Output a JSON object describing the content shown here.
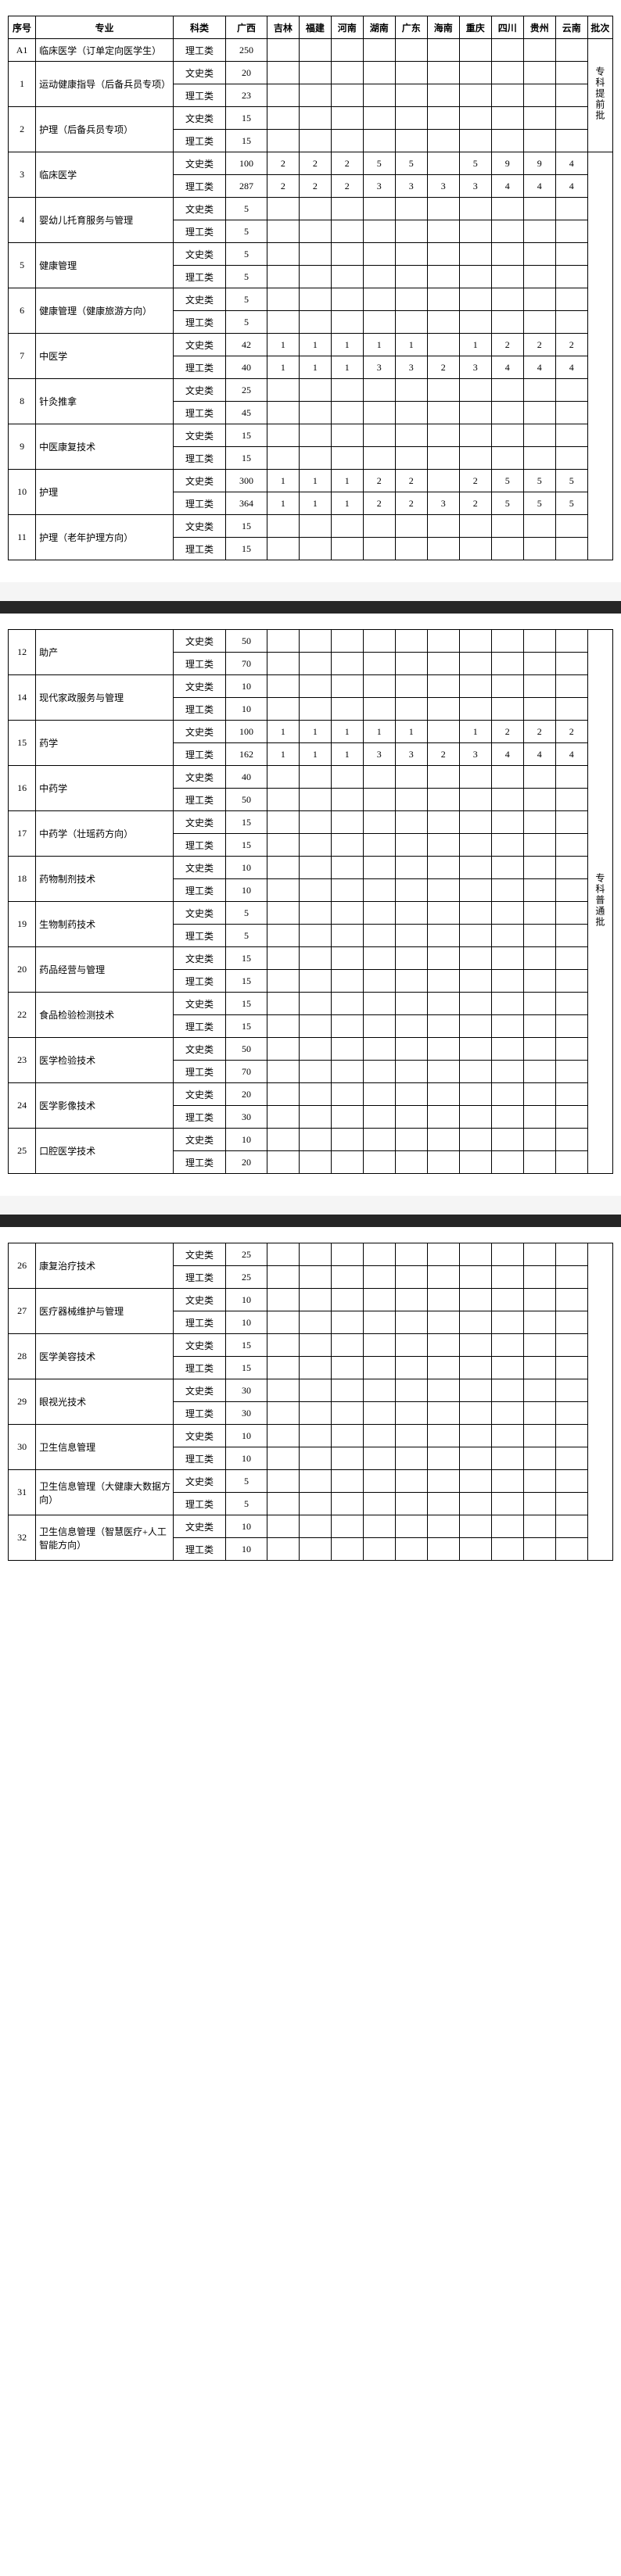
{
  "headers": {
    "seq": "序号",
    "major": "专业",
    "subject": "科类",
    "provinces": [
      "广西",
      "吉林",
      "福建",
      "河南",
      "湖南",
      "广东",
      "海南",
      "重庆",
      "四川",
      "贵州",
      "云南"
    ],
    "batch": "批次"
  },
  "batches": {
    "pre": "专科提前批",
    "normal": "专科普通批"
  },
  "subjects": {
    "arts": "文史类",
    "sci": "理工类"
  },
  "rows_p1": [
    {
      "seq": "A1",
      "major": "临床医学（订单定向医学生）",
      "subs": [
        {
          "s": "sci",
          "v": [
            "250",
            "",
            "",
            "",
            "",
            "",
            "",
            "",
            "",
            "",
            ""
          ]
        }
      ]
    },
    {
      "seq": "1",
      "major": "运动健康指导（后备兵员专项）",
      "subs": [
        {
          "s": "arts",
          "v": [
            "20",
            "",
            "",
            "",
            "",
            "",
            "",
            "",
            "",
            "",
            ""
          ]
        },
        {
          "s": "sci",
          "v": [
            "23",
            "",
            "",
            "",
            "",
            "",
            "",
            "",
            "",
            "",
            ""
          ]
        }
      ]
    },
    {
      "seq": "2",
      "major": "护理（后备兵员专项）",
      "subs": [
        {
          "s": "arts",
          "v": [
            "15",
            "",
            "",
            "",
            "",
            "",
            "",
            "",
            "",
            "",
            ""
          ]
        },
        {
          "s": "sci",
          "v": [
            "15",
            "",
            "",
            "",
            "",
            "",
            "",
            "",
            "",
            "",
            ""
          ]
        }
      ]
    },
    {
      "seq": "3",
      "major": "临床医学",
      "subs": [
        {
          "s": "arts",
          "v": [
            "100",
            "2",
            "2",
            "2",
            "5",
            "5",
            "",
            "5",
            "9",
            "9",
            "4"
          ]
        },
        {
          "s": "sci",
          "v": [
            "287",
            "2",
            "2",
            "2",
            "3",
            "3",
            "3",
            "3",
            "4",
            "4",
            "4"
          ]
        }
      ]
    },
    {
      "seq": "4",
      "major": "婴幼儿托育服务与管理",
      "subs": [
        {
          "s": "arts",
          "v": [
            "5",
            "",
            "",
            "",
            "",
            "",
            "",
            "",
            "",
            "",
            ""
          ]
        },
        {
          "s": "sci",
          "v": [
            "5",
            "",
            "",
            "",
            "",
            "",
            "",
            "",
            "",
            "",
            ""
          ]
        }
      ]
    },
    {
      "seq": "5",
      "major": "健康管理",
      "subs": [
        {
          "s": "arts",
          "v": [
            "5",
            "",
            "",
            "",
            "",
            "",
            "",
            "",
            "",
            "",
            ""
          ]
        },
        {
          "s": "sci",
          "v": [
            "5",
            "",
            "",
            "",
            "",
            "",
            "",
            "",
            "",
            "",
            ""
          ]
        }
      ]
    },
    {
      "seq": "6",
      "major": "健康管理（健康旅游方向）",
      "subs": [
        {
          "s": "arts",
          "v": [
            "5",
            "",
            "",
            "",
            "",
            "",
            "",
            "",
            "",
            "",
            ""
          ]
        },
        {
          "s": "sci",
          "v": [
            "5",
            "",
            "",
            "",
            "",
            "",
            "",
            "",
            "",
            "",
            ""
          ]
        }
      ]
    },
    {
      "seq": "7",
      "major": "中医学",
      "subs": [
        {
          "s": "arts",
          "v": [
            "42",
            "1",
            "1",
            "1",
            "1",
            "1",
            "",
            "1",
            "2",
            "2",
            "2"
          ]
        },
        {
          "s": "sci",
          "v": [
            "40",
            "1",
            "1",
            "1",
            "3",
            "3",
            "2",
            "3",
            "4",
            "4",
            "4"
          ]
        }
      ]
    },
    {
      "seq": "8",
      "major": "针灸推拿",
      "subs": [
        {
          "s": "arts",
          "v": [
            "25",
            "",
            "",
            "",
            "",
            "",
            "",
            "",
            "",
            "",
            ""
          ]
        },
        {
          "s": "sci",
          "v": [
            "45",
            "",
            "",
            "",
            "",
            "",
            "",
            "",
            "",
            "",
            ""
          ]
        }
      ]
    },
    {
      "seq": "9",
      "major": "中医康复技术",
      "subs": [
        {
          "s": "arts",
          "v": [
            "15",
            "",
            "",
            "",
            "",
            "",
            "",
            "",
            "",
            "",
            ""
          ]
        },
        {
          "s": "sci",
          "v": [
            "15",
            "",
            "",
            "",
            "",
            "",
            "",
            "",
            "",
            "",
            ""
          ]
        }
      ]
    },
    {
      "seq": "10",
      "major": "护理",
      "subs": [
        {
          "s": "arts",
          "v": [
            "300",
            "1",
            "1",
            "1",
            "2",
            "2",
            "",
            "2",
            "5",
            "5",
            "5"
          ]
        },
        {
          "s": "sci",
          "v": [
            "364",
            "1",
            "1",
            "1",
            "2",
            "2",
            "3",
            "2",
            "5",
            "5",
            "5"
          ]
        }
      ]
    },
    {
      "seq": "11",
      "major": "护理（老年护理方向）",
      "subs": [
        {
          "s": "arts",
          "v": [
            "15",
            "",
            "",
            "",
            "",
            "",
            "",
            "",
            "",
            "",
            ""
          ]
        },
        {
          "s": "sci",
          "v": [
            "15",
            "",
            "",
            "",
            "",
            "",
            "",
            "",
            "",
            "",
            ""
          ]
        }
      ]
    }
  ],
  "rows_p2": [
    {
      "seq": "12",
      "major": "助产",
      "subs": [
        {
          "s": "arts",
          "v": [
            "50",
            "",
            "",
            "",
            "",
            "",
            "",
            "",
            "",
            "",
            ""
          ]
        },
        {
          "s": "sci",
          "v": [
            "70",
            "",
            "",
            "",
            "",
            "",
            "",
            "",
            "",
            "",
            ""
          ]
        }
      ]
    },
    {
      "seq": "14",
      "major": "现代家政服务与管理",
      "subs": [
        {
          "s": "arts",
          "v": [
            "10",
            "",
            "",
            "",
            "",
            "",
            "",
            "",
            "",
            "",
            ""
          ]
        },
        {
          "s": "sci",
          "v": [
            "10",
            "",
            "",
            "",
            "",
            "",
            "",
            "",
            "",
            "",
            ""
          ]
        }
      ]
    },
    {
      "seq": "15",
      "major": "药学",
      "subs": [
        {
          "s": "arts",
          "v": [
            "100",
            "1",
            "1",
            "1",
            "1",
            "1",
            "",
            "1",
            "2",
            "2",
            "2"
          ]
        },
        {
          "s": "sci",
          "v": [
            "162",
            "1",
            "1",
            "1",
            "3",
            "3",
            "2",
            "3",
            "4",
            "4",
            "4"
          ]
        }
      ]
    },
    {
      "seq": "16",
      "major": "中药学",
      "subs": [
        {
          "s": "arts",
          "v": [
            "40",
            "",
            "",
            "",
            "",
            "",
            "",
            "",
            "",
            "",
            ""
          ]
        },
        {
          "s": "sci",
          "v": [
            "50",
            "",
            "",
            "",
            "",
            "",
            "",
            "",
            "",
            "",
            ""
          ]
        }
      ]
    },
    {
      "seq": "17",
      "major": "中药学（壮瑶药方向）",
      "subs": [
        {
          "s": "arts",
          "v": [
            "15",
            "",
            "",
            "",
            "",
            "",
            "",
            "",
            "",
            "",
            ""
          ]
        },
        {
          "s": "sci",
          "v": [
            "15",
            "",
            "",
            "",
            "",
            "",
            "",
            "",
            "",
            "",
            ""
          ]
        }
      ]
    },
    {
      "seq": "18",
      "major": "药物制剂技术",
      "subs": [
        {
          "s": "arts",
          "v": [
            "10",
            "",
            "",
            "",
            "",
            "",
            "",
            "",
            "",
            "",
            ""
          ]
        },
        {
          "s": "sci",
          "v": [
            "10",
            "",
            "",
            "",
            "",
            "",
            "",
            "",
            "",
            "",
            ""
          ]
        }
      ]
    },
    {
      "seq": "19",
      "major": "生物制药技术",
      "subs": [
        {
          "s": "arts",
          "v": [
            "5",
            "",
            "",
            "",
            "",
            "",
            "",
            "",
            "",
            "",
            ""
          ]
        },
        {
          "s": "sci",
          "v": [
            "5",
            "",
            "",
            "",
            "",
            "",
            "",
            "",
            "",
            "",
            ""
          ]
        }
      ]
    },
    {
      "seq": "20",
      "major": "药品经营与管理",
      "subs": [
        {
          "s": "arts",
          "v": [
            "15",
            "",
            "",
            "",
            "",
            "",
            "",
            "",
            "",
            "",
            ""
          ]
        },
        {
          "s": "sci",
          "v": [
            "15",
            "",
            "",
            "",
            "",
            "",
            "",
            "",
            "",
            "",
            ""
          ]
        }
      ]
    },
    {
      "seq": "22",
      "major": "食品检验检测技术",
      "subs": [
        {
          "s": "arts",
          "v": [
            "15",
            "",
            "",
            "",
            "",
            "",
            "",
            "",
            "",
            "",
            ""
          ]
        },
        {
          "s": "sci",
          "v": [
            "15",
            "",
            "",
            "",
            "",
            "",
            "",
            "",
            "",
            "",
            ""
          ]
        }
      ]
    },
    {
      "seq": "23",
      "major": "医学检验技术",
      "subs": [
        {
          "s": "arts",
          "v": [
            "50",
            "",
            "",
            "",
            "",
            "",
            "",
            "",
            "",
            "",
            ""
          ]
        },
        {
          "s": "sci",
          "v": [
            "70",
            "",
            "",
            "",
            "",
            "",
            "",
            "",
            "",
            "",
            ""
          ]
        }
      ]
    },
    {
      "seq": "24",
      "major": "医学影像技术",
      "subs": [
        {
          "s": "arts",
          "v": [
            "20",
            "",
            "",
            "",
            "",
            "",
            "",
            "",
            "",
            "",
            ""
          ]
        },
        {
          "s": "sci",
          "v": [
            "30",
            "",
            "",
            "",
            "",
            "",
            "",
            "",
            "",
            "",
            ""
          ]
        }
      ]
    },
    {
      "seq": "25",
      "major": "口腔医学技术",
      "subs": [
        {
          "s": "arts",
          "v": [
            "10",
            "",
            "",
            "",
            "",
            "",
            "",
            "",
            "",
            "",
            ""
          ]
        },
        {
          "s": "sci",
          "v": [
            "20",
            "",
            "",
            "",
            "",
            "",
            "",
            "",
            "",
            "",
            ""
          ]
        }
      ]
    }
  ],
  "rows_p3": [
    {
      "seq": "26",
      "major": "康复治疗技术",
      "subs": [
        {
          "s": "arts",
          "v": [
            "25",
            "",
            "",
            "",
            "",
            "",
            "",
            "",
            "",
            "",
            ""
          ]
        },
        {
          "s": "sci",
          "v": [
            "25",
            "",
            "",
            "",
            "",
            "",
            "",
            "",
            "",
            "",
            ""
          ]
        }
      ]
    },
    {
      "seq": "27",
      "major": "医疗器械维护与管理",
      "subs": [
        {
          "s": "arts",
          "v": [
            "10",
            "",
            "",
            "",
            "",
            "",
            "",
            "",
            "",
            "",
            ""
          ]
        },
        {
          "s": "sci",
          "v": [
            "10",
            "",
            "",
            "",
            "",
            "",
            "",
            "",
            "",
            "",
            ""
          ]
        }
      ]
    },
    {
      "seq": "28",
      "major": "医学美容技术",
      "subs": [
        {
          "s": "arts",
          "v": [
            "15",
            "",
            "",
            "",
            "",
            "",
            "",
            "",
            "",
            "",
            ""
          ]
        },
        {
          "s": "sci",
          "v": [
            "15",
            "",
            "",
            "",
            "",
            "",
            "",
            "",
            "",
            "",
            ""
          ]
        }
      ]
    },
    {
      "seq": "29",
      "major": "眼视光技术",
      "subs": [
        {
          "s": "arts",
          "v": [
            "30",
            "",
            "",
            "",
            "",
            "",
            "",
            "",
            "",
            "",
            ""
          ]
        },
        {
          "s": "sci",
          "v": [
            "30",
            "",
            "",
            "",
            "",
            "",
            "",
            "",
            "",
            "",
            ""
          ]
        }
      ]
    },
    {
      "seq": "30",
      "major": "卫生信息管理",
      "subs": [
        {
          "s": "arts",
          "v": [
            "10",
            "",
            "",
            "",
            "",
            "",
            "",
            "",
            "",
            "",
            ""
          ]
        },
        {
          "s": "sci",
          "v": [
            "10",
            "",
            "",
            "",
            "",
            "",
            "",
            "",
            "",
            "",
            ""
          ]
        }
      ]
    },
    {
      "seq": "31",
      "major": "卫生信息管理（大健康大数据方向）",
      "subs": [
        {
          "s": "arts",
          "v": [
            "5",
            "",
            "",
            "",
            "",
            "",
            "",
            "",
            "",
            "",
            ""
          ]
        },
        {
          "s": "sci",
          "v": [
            "5",
            "",
            "",
            "",
            "",
            "",
            "",
            "",
            "",
            "",
            ""
          ]
        }
      ]
    },
    {
      "seq": "32",
      "major": "卫生信息管理（智慧医疗+人工智能方向）",
      "subs": [
        {
          "s": "arts",
          "v": [
            "10",
            "",
            "",
            "",
            "",
            "",
            "",
            "",
            "",
            "",
            ""
          ]
        },
        {
          "s": "sci",
          "v": [
            "10",
            "",
            "",
            "",
            "",
            "",
            "",
            "",
            "",
            "",
            ""
          ]
        }
      ]
    }
  ]
}
